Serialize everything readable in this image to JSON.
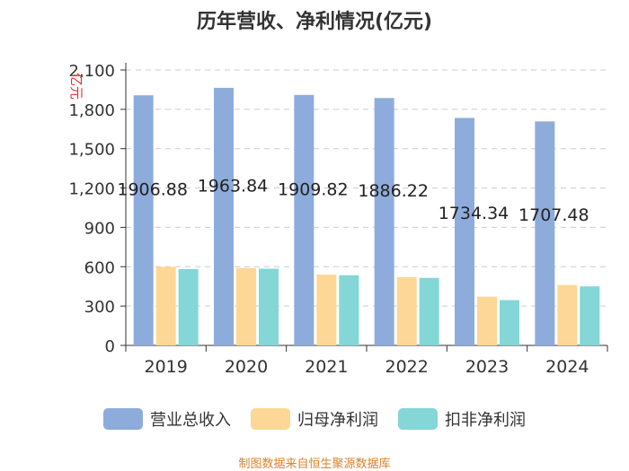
{
  "chart_data": {
    "type": "bar",
    "title": "历年营收、净利情况(亿元)",
    "ylabel": "亿元",
    "xlabel": "",
    "categories": [
      "2019",
      "2020",
      "2021",
      "2022",
      "2023",
      "2024"
    ],
    "ylim": [
      0,
      2100
    ],
    "yticks": [
      0,
      300,
      600,
      900,
      1200,
      1500,
      1800,
      2100
    ],
    "ytick_labels": [
      "0",
      "300",
      "600",
      "900",
      "1,200",
      "1,500",
      "1,800",
      "2,100"
    ],
    "grid": true,
    "legend_position": "bottom",
    "series": [
      {
        "name": "营业总收入",
        "color": "#8eacdb",
        "values": [
          1906.88,
          1963.84,
          1909.82,
          1886.22,
          1734.34,
          1707.48
        ],
        "labels": [
          "1906.88",
          "1963.84",
          "1909.82",
          "1886.22",
          "1734.34",
          "1707.48"
        ]
      },
      {
        "name": "归母净利润",
        "color": "#fdd795",
        "values": [
          600,
          590,
          540,
          520,
          372,
          460
        ]
      },
      {
        "name": "扣非净利润",
        "color": "#84d6d7",
        "values": [
          582,
          585,
          535,
          515,
          345,
          450
        ]
      }
    ]
  },
  "footer": {
    "source": "制图数据来自恒生聚源数据库"
  }
}
